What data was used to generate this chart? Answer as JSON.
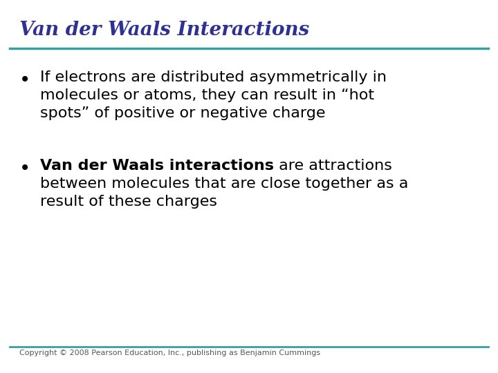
{
  "title": "Van der Waals Interactions",
  "title_color": "#2E3192",
  "title_fontstyle": "italic",
  "title_fontsize": 20,
  "line_color": "#3A9E9E",
  "background_color": "#FFFFFF",
  "bullet_color": "#000000",
  "bullet1_line1": "If electrons are distributed asymmetrically in",
  "bullet1_line2": "molecules or atoms, they can result in “hot",
  "bullet1_line3": "spots” of positive or negative charge",
  "bullet2_bold": "Van der Waals interactions",
  "bullet2_rest_line1": " are attractions",
  "bullet2_line2": "between molecules that are close together as a",
  "bullet2_line3": "result of these charges",
  "body_fontsize": 16,
  "footer_text": "Copyright © 2008 Pearson Education, Inc., publishing as Benjamin Cummings",
  "footer_fontsize": 8,
  "footer_color": "#555555"
}
